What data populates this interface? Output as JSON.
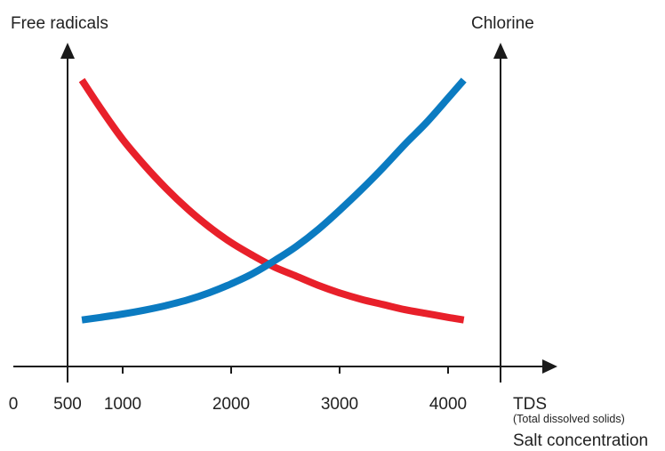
{
  "chart_data": {
    "type": "line",
    "title": "",
    "left_axis_label": "Free radicals",
    "right_axis_label": "Chlorine",
    "xlabel": "TDS",
    "xlabel_sub": "(Total dissolved solids)",
    "xlabel_2": "Salt concentration",
    "xlim": [
      0,
      4500
    ],
    "x_ticks": [
      0,
      500,
      1000,
      2000,
      3000,
      4000
    ],
    "tick_labels": [
      "0",
      "500",
      "1000",
      "2000",
      "3000",
      "4000"
    ],
    "ylim": [
      0,
      100
    ],
    "grid": false,
    "legend": false,
    "series": [
      {
        "color": "#e8202a",
        "x": [
          630,
          800,
          1000,
          1200,
          1400,
          1600,
          1800,
          2000,
          2200,
          2400,
          2600,
          2800,
          3000,
          3200,
          3400,
          3600,
          3800,
          4000,
          4150
        ],
        "y": [
          100,
          89,
          77,
          67,
          58,
          50,
          43,
          37,
          32,
          27.5,
          24,
          20.5,
          17.5,
          15,
          13,
          11,
          9.5,
          8,
          7
        ]
      },
      {
        "color": "#0b7bc1",
        "x": [
          630,
          800,
          1000,
          1200,
          1400,
          1600,
          1800,
          2000,
          2200,
          2400,
          2600,
          2800,
          3000,
          3200,
          3400,
          3600,
          3800,
          4000,
          4150
        ],
        "y": [
          7,
          8,
          9.3,
          10.8,
          12.6,
          14.8,
          17.6,
          21,
          25,
          30,
          35.5,
          42,
          49.5,
          57.5,
          66,
          75,
          83.5,
          93,
          100
        ]
      }
    ]
  }
}
